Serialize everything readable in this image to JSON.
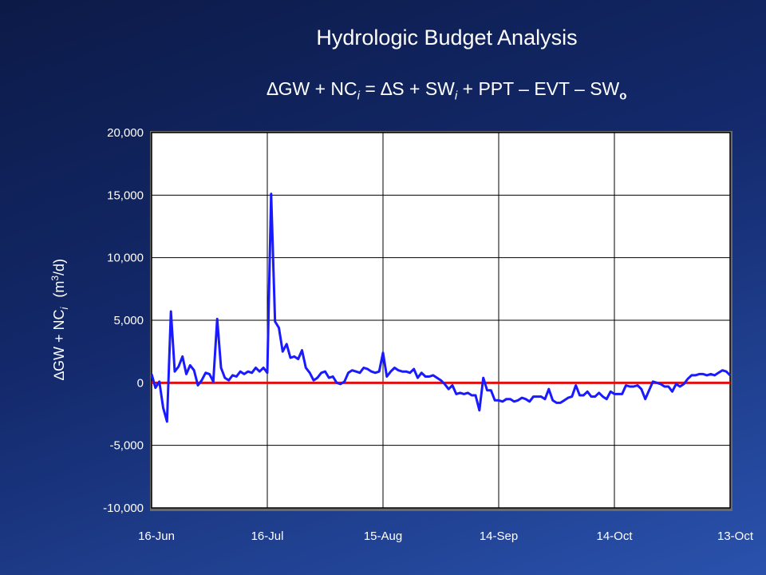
{
  "page": {
    "title": "Hydrologic Budget Analysis",
    "equation": {
      "p1": "∆GW + NC",
      "s1": "i",
      "p2": " = ∆S + SW",
      "s2": "i",
      "p3": " + PPT – EVT – SW",
      "s3": "o"
    }
  },
  "colors": {
    "series": "#1a1aff",
    "baseline": "#dd1111",
    "plot_background": "#ffffff",
    "grid": "#000000"
  },
  "chart_data": {
    "type": "line",
    "title": "Hydrologic Budget Analysis",
    "ylabel": "∆GW + NCi (m3/d)",
    "ylabel_parts": {
      "main": "∆GW + NC",
      "sub": "i",
      "paren_open": "(m",
      "sup": "3",
      "paren_close": "/d)"
    },
    "ylim": [
      -10000,
      20000
    ],
    "yticks": [
      {
        "value": 20000,
        "label": "20,000"
      },
      {
        "value": 15000,
        "label": "15,000"
      },
      {
        "value": 10000,
        "label": "10,000"
      },
      {
        "value": 5000,
        "label": "5,000"
      },
      {
        "value": 0,
        "label": "0"
      },
      {
        "value": -5000,
        "label": "-5,000"
      },
      {
        "value": -10000,
        "label": "-10,000"
      }
    ],
    "xlim": [
      0,
      150
    ],
    "xticks": [
      {
        "value": 0,
        "label": "16-Jun"
      },
      {
        "value": 30,
        "label": "16-Jul"
      },
      {
        "value": 60,
        "label": "15-Aug"
      },
      {
        "value": 90,
        "label": "14-Sep"
      },
      {
        "value": 120,
        "label": "14-Oct"
      },
      {
        "value": 150,
        "label": "13-Oct"
      }
    ],
    "grid": true,
    "baseline": 0,
    "series": [
      {
        "x": [
          0,
          1,
          2,
          3,
          4,
          5,
          6,
          7,
          8,
          9,
          10,
          11,
          12,
          13,
          14,
          15,
          16,
          17,
          18,
          19,
          20,
          21,
          22,
          23,
          24,
          25,
          26,
          27,
          28,
          29,
          30,
          31,
          32,
          33,
          34,
          35,
          36,
          37,
          38,
          39,
          40,
          41,
          42,
          43,
          44,
          45,
          46,
          47,
          48,
          49,
          50,
          51,
          52,
          53,
          54,
          55,
          56,
          57,
          58,
          59,
          60,
          61,
          62,
          63,
          64,
          65,
          66,
          67,
          68,
          69,
          70,
          71,
          72,
          73,
          74,
          75,
          76,
          77,
          78,
          79,
          80,
          81,
          82,
          83,
          84,
          85,
          86,
          87,
          88,
          89,
          90,
          91,
          92,
          93,
          94,
          95,
          96,
          97,
          98,
          99,
          100,
          101,
          102,
          103,
          104,
          105,
          106,
          107,
          108,
          109,
          110,
          111,
          112,
          113,
          114,
          115,
          116,
          117,
          118,
          119,
          120,
          121,
          122,
          123,
          124,
          125,
          126,
          127,
          128,
          129,
          130,
          131,
          132,
          133,
          134,
          135,
          136,
          137,
          138,
          139,
          140,
          141,
          142,
          143,
          144,
          145,
          146,
          147,
          148,
          149,
          150
        ],
        "y": [
          700,
          -400,
          100,
          -2000,
          -3100,
          5700,
          900,
          1300,
          2100,
          700,
          1400,
          1000,
          -200,
          200,
          800,
          700,
          100,
          5100,
          1200,
          400,
          200,
          600,
          500,
          900,
          700,
          900,
          800,
          1200,
          900,
          1200,
          800,
          15100,
          4900,
          4400,
          2500,
          3100,
          2000,
          2100,
          1900,
          2600,
          1200,
          800,
          200,
          400,
          800,
          900,
          400,
          500,
          0,
          -100,
          100,
          800,
          1000,
          900,
          800,
          1200,
          1100,
          900,
          800,
          900,
          2400,
          500,
          900,
          1200,
          1000,
          900,
          900,
          800,
          1100,
          400,
          800,
          500,
          500,
          600,
          400,
          200,
          -100,
          -500,
          -200,
          -900,
          -800,
          -900,
          -800,
          -1000,
          -1000,
          -2200,
          400,
          -600,
          -600,
          -1400,
          -1400,
          -1500,
          -1300,
          -1300,
          -1500,
          -1400,
          -1200,
          -1300,
          -1500,
          -1100,
          -1100,
          -1100,
          -1300,
          -500,
          -1400,
          -1600,
          -1600,
          -1400,
          -1200,
          -1100,
          -200,
          -1000,
          -1000,
          -700,
          -1100,
          -1100,
          -800,
          -1100,
          -1300,
          -700,
          -900,
          -900,
          -900,
          -200,
          -300,
          -300,
          -200,
          -500,
          -1300,
          -600,
          100,
          0,
          -100,
          -300,
          -300,
          -700,
          -100,
          -300,
          -100,
          300,
          600,
          600,
          700,
          700,
          600,
          700,
          600,
          800,
          1000,
          900,
          600
        ]
      }
    ]
  }
}
